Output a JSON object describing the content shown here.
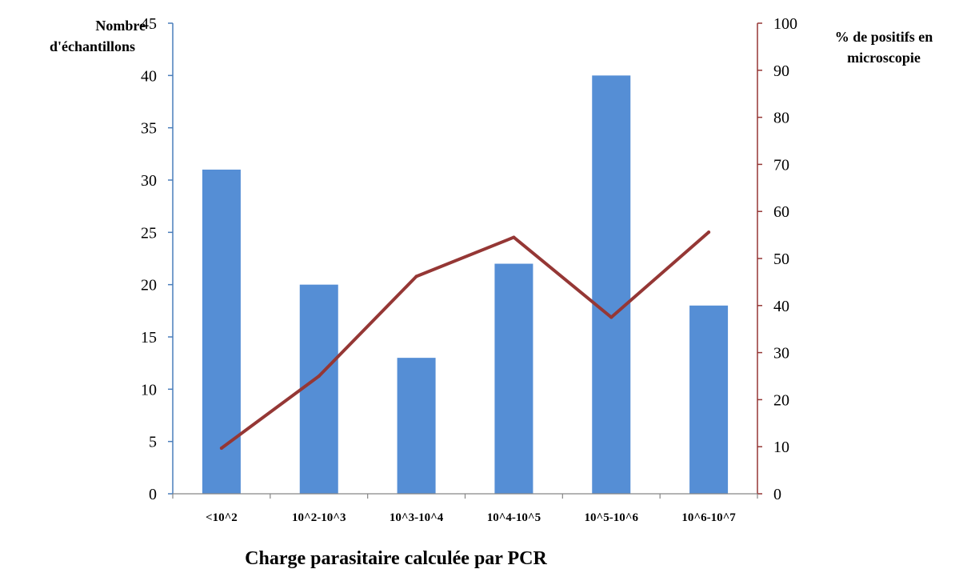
{
  "chart_data": {
    "type": "bar",
    "categories": [
      "<10^2",
      "10^2-10^3",
      "10^3-10^4",
      "10^4-10^5",
      "10^5-10^6",
      "10^6-10^7"
    ],
    "series": [
      {
        "type": "bar",
        "axis": "left",
        "values": [
          31,
          20,
          13,
          22,
          40,
          18
        ],
        "color": "#558ED5"
      },
      {
        "type": "line",
        "axis": "right",
        "values": [
          9.7,
          25.0,
          46.2,
          54.5,
          37.5,
          55.6
        ],
        "color": "#953735"
      }
    ],
    "xlabel": "Charge parasitaire calculée par PCR",
    "ylabel_left": [
      "Nombre",
      "d'échantillons"
    ],
    "ylabel_right": [
      "% de positifs en",
      "microscopie"
    ],
    "ylim_left": [
      0,
      45
    ],
    "yticks_left": [
      0,
      5,
      10,
      15,
      20,
      25,
      30,
      35,
      40,
      45
    ],
    "ylim_right": [
      0,
      100
    ],
    "yticks_right": [
      0,
      10,
      20,
      30,
      40,
      50,
      60,
      70,
      80,
      90,
      100
    ],
    "left_axis_color": "#4A7EBB",
    "right_axis_color": "#953735",
    "grid": false,
    "legend": "none"
  }
}
